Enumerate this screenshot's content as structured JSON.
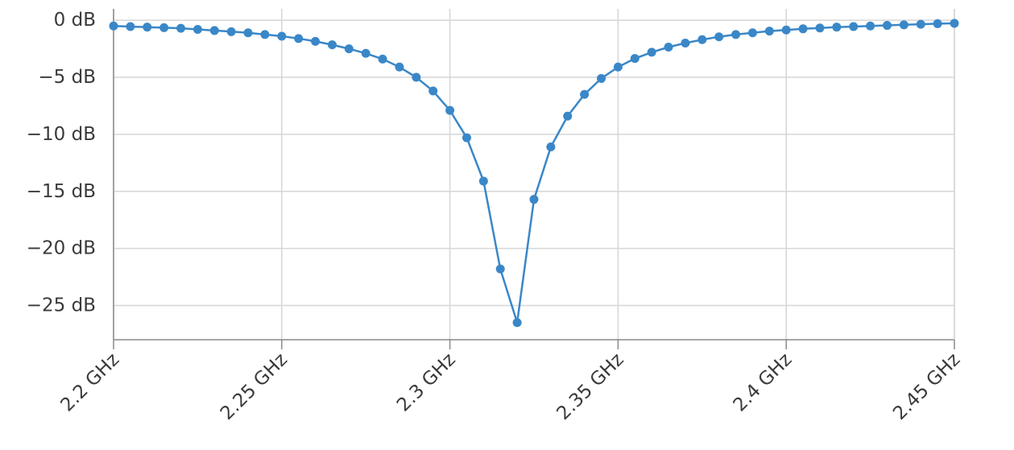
{
  "chart_data": {
    "type": "line",
    "title": "",
    "xlabel": "",
    "ylabel": "",
    "x_unit": "GHz",
    "y_unit": "dB",
    "xlim": [
      2.2,
      2.45
    ],
    "ylim": [
      -28,
      1
    ],
    "grid": true,
    "x_ticks": [
      2.2,
      2.25,
      2.3,
      2.35,
      2.4,
      2.45
    ],
    "x_tick_labels": [
      "2.2 GHz",
      "2.25 GHz",
      "2.3 GHz",
      "2.35 GHz",
      "2.4 GHz",
      "2.45 GHz"
    ],
    "y_ticks": [
      0,
      -5,
      -10,
      -15,
      -20,
      -25
    ],
    "y_tick_labels": [
      "0 dB",
      "−5 dB",
      "−10 dB",
      "−15 dB",
      "−20 dB",
      "−25 dB"
    ],
    "color": "#3a87c8",
    "series": [
      {
        "x": [
          2.2,
          2.205,
          2.21,
          2.215,
          2.22,
          2.225,
          2.23,
          2.235,
          2.24,
          2.245,
          2.25,
          2.255,
          2.26,
          2.265,
          2.27,
          2.275,
          2.28,
          2.285,
          2.29,
          2.295,
          2.3,
          2.305,
          2.31,
          2.315,
          2.32,
          2.325,
          2.33,
          2.335,
          2.34,
          2.345,
          2.35,
          2.355,
          2.36,
          2.365,
          2.37,
          2.375,
          2.38,
          2.385,
          2.39,
          2.395,
          2.4,
          2.405,
          2.41,
          2.415,
          2.42,
          2.425,
          2.43,
          2.435,
          2.44,
          2.445,
          2.45
        ],
        "values": [
          -0.5,
          -0.55,
          -0.6,
          -0.65,
          -0.7,
          -0.8,
          -0.9,
          -1.0,
          -1.1,
          -1.25,
          -1.4,
          -1.6,
          -1.85,
          -2.15,
          -2.5,
          -2.9,
          -3.4,
          -4.1,
          -5.0,
          -6.2,
          -7.9,
          -10.3,
          -14.1,
          -21.8,
          -26.5,
          -15.7,
          -11.1,
          -8.4,
          -6.5,
          -5.1,
          -4.1,
          -3.35,
          -2.8,
          -2.35,
          -2.0,
          -1.7,
          -1.45,
          -1.25,
          -1.1,
          -0.95,
          -0.85,
          -0.75,
          -0.68,
          -0.6,
          -0.55,
          -0.5,
          -0.45,
          -0.4,
          -0.35,
          -0.3,
          -0.27
        ]
      }
    ]
  }
}
